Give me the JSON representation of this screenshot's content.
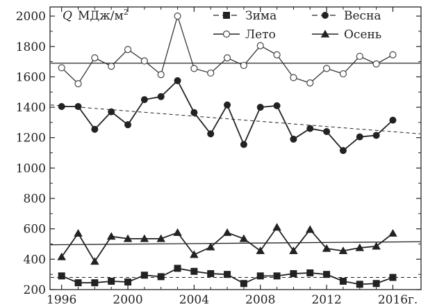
{
  "chart_data": {
    "type": "line",
    "ylabel_symbol": "Q",
    "ylabel_unit": "МДж/м",
    "ylabel_unit_sup": "2",
    "x_unit": "г.",
    "xlim": [
      1995.3,
      2017.7
    ],
    "ylim": [
      200,
      2060
    ],
    "x_ticks": [
      1996,
      2000,
      2004,
      2008,
      2012,
      2016
    ],
    "y_ticks": [
      200,
      400,
      600,
      800,
      1000,
      1200,
      1400,
      1600,
      1800,
      2000
    ],
    "x": [
      1996,
      1997,
      1998,
      1999,
      2000,
      2001,
      2002,
      2003,
      2004,
      2005,
      2006,
      2007,
      2008,
      2009,
      2010,
      2011,
      2012,
      2013,
      2014,
      2015,
      2016
    ],
    "series": [
      {
        "name": "Зима",
        "marker": "square",
        "values": [
          290,
          245,
          245,
          255,
          250,
          295,
          285,
          340,
          320,
          305,
          300,
          240,
          290,
          290,
          305,
          310,
          300,
          255,
          235,
          240,
          280
        ],
        "trend": [
          280,
          280
        ],
        "trend_style": "dashed"
      },
      {
        "name": "Весна",
        "marker": "circle",
        "values": [
          1405,
          1405,
          1255,
          1370,
          1285,
          1450,
          1470,
          1575,
          1365,
          1225,
          1415,
          1155,
          1400,
          1410,
          1190,
          1260,
          1240,
          1115,
          1205,
          1215,
          1315
        ],
        "trend": [
          1415,
          1225
        ],
        "trend_style": "dashed"
      },
      {
        "name": "Лето",
        "marker": "open-circle",
        "values": [
          1660,
          1555,
          1725,
          1670,
          1780,
          1705,
          1615,
          2000,
          1655,
          1625,
          1725,
          1675,
          1805,
          1745,
          1595,
          1560,
          1655,
          1620,
          1735,
          1685,
          1745
        ],
        "trend": [
          1690,
          1690
        ],
        "trend_style": "solid"
      },
      {
        "name": "Осень",
        "marker": "triangle",
        "values": [
          415,
          570,
          385,
          550,
          535,
          535,
          535,
          575,
          430,
          480,
          575,
          535,
          455,
          610,
          455,
          595,
          470,
          455,
          475,
          485,
          570
        ],
        "trend": [
          495,
          515
        ],
        "trend_style": "solid"
      }
    ]
  }
}
